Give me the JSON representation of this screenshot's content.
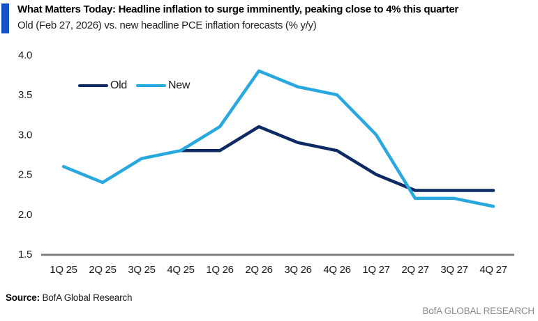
{
  "header": {
    "title": "What Matters Today: Headline inflation to surge imminently, peaking close to 4% this quarter",
    "subtitle": "Old (Feb 27, 2026) vs. new headline PCE inflation forecasts (% y/y)",
    "accent_color": "#1353c5"
  },
  "chart_data": {
    "type": "line",
    "title": "Old (Feb 27, 2026) vs. new headline PCE inflation forecasts (% y/y)",
    "categories": [
      "1Q 25",
      "2Q 25",
      "3Q 25",
      "4Q 25",
      "1Q 26",
      "2Q 26",
      "3Q 26",
      "4Q 26",
      "1Q 27",
      "2Q 27",
      "3Q 27",
      "4Q 27"
    ],
    "series": [
      {
        "name": "Old",
        "color": "#0d2a63",
        "values": [
          null,
          null,
          null,
          2.8,
          2.8,
          3.1,
          2.9,
          2.8,
          2.5,
          2.3,
          2.3,
          2.3
        ]
      },
      {
        "name": "New",
        "color": "#29a8e0",
        "values": [
          2.6,
          2.4,
          2.7,
          2.8,
          3.1,
          3.8,
          3.6,
          3.5,
          3.0,
          2.2,
          2.2,
          2.1
        ]
      }
    ],
    "xlabel": "",
    "ylabel": "",
    "ylim": [
      1.5,
      4.0
    ],
    "ytick_step": 0.5,
    "yticks": [
      "4.0",
      "3.5",
      "3.0",
      "2.5",
      "2.0",
      "1.5"
    ],
    "grid": false,
    "legend_position": "top-left-inside",
    "axis_line_color": "#7f7f7f"
  },
  "footer": {
    "source_label": "Source:",
    "source_text": "BofA Global Research",
    "brand": "BofA GLOBAL RESEARCH"
  }
}
